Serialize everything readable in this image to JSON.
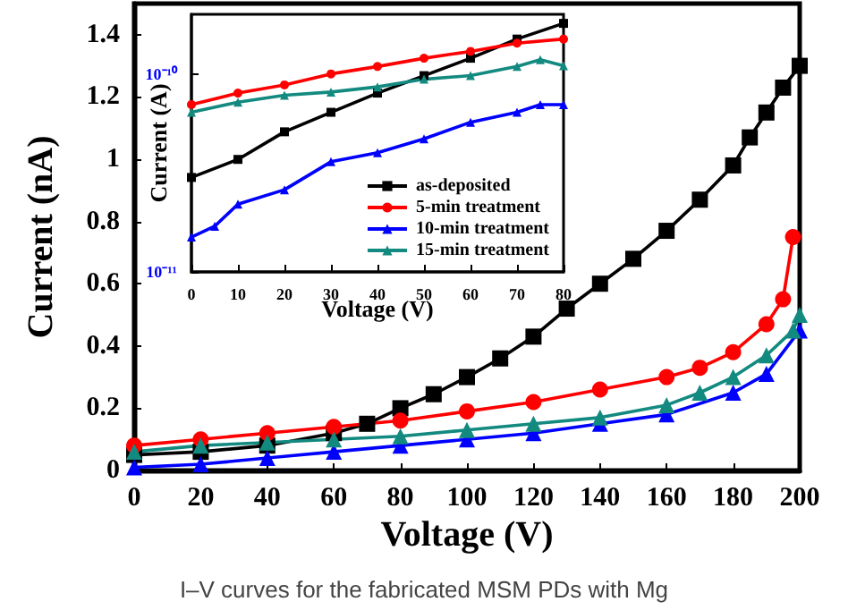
{
  "chart_data": [
    {
      "type": "line",
      "xlabel": "Voltage (V)",
      "ylabel": "Current (nA)",
      "xlim": [
        0,
        200
      ],
      "xticks": [
        0,
        20,
        40,
        60,
        80,
        100,
        120,
        140,
        160,
        180,
        200
      ],
      "ylim": [
        0,
        1.5
      ],
      "yticks": [
        0,
        0.2,
        0.4,
        0.6,
        0.8,
        1.0,
        1.2,
        1.4
      ],
      "grid": false,
      "legend": false,
      "annotations": [
        "I–V curves for the fabricated MSM PDs with Mg"
      ],
      "series": [
        {
          "color": "#000000",
          "marker": "square",
          "x": [
            0,
            20,
            40,
            60,
            70,
            80,
            90,
            100,
            110,
            120,
            130,
            140,
            150,
            160,
            170,
            180,
            185,
            190,
            195,
            200
          ],
          "values": [
            0.05,
            0.06,
            0.08,
            0.12,
            0.15,
            0.2,
            0.245,
            0.3,
            0.36,
            0.43,
            0.52,
            0.6,
            0.68,
            0.77,
            0.87,
            0.98,
            1.07,
            1.15,
            1.23,
            1.3
          ]
        },
        {
          "color": "#ff0000",
          "marker": "circle",
          "x": [
            0,
            20,
            40,
            60,
            80,
            100,
            120,
            140,
            160,
            170,
            180,
            190,
            195,
            198
          ],
          "values": [
            0.08,
            0.1,
            0.12,
            0.14,
            0.16,
            0.19,
            0.22,
            0.26,
            0.3,
            0.33,
            0.38,
            0.47,
            0.55,
            0.75
          ]
        },
        {
          "color": "#0000ff",
          "marker": "triangle",
          "x": [
            0,
            20,
            40,
            60,
            80,
            100,
            120,
            140,
            160,
            180,
            190,
            200
          ],
          "values": [
            0.01,
            0.02,
            0.04,
            0.06,
            0.08,
            0.1,
            0.12,
            0.15,
            0.18,
            0.25,
            0.31,
            0.45
          ]
        },
        {
          "color": "#138a80",
          "marker": "triangle",
          "x": [
            0,
            20,
            40,
            60,
            80,
            100,
            120,
            140,
            160,
            170,
            180,
            190,
            198,
            200
          ],
          "values": [
            0.06,
            0.08,
            0.09,
            0.1,
            0.11,
            0.13,
            0.15,
            0.17,
            0.21,
            0.25,
            0.3,
            0.37,
            0.45,
            0.5
          ]
        }
      ]
    },
    {
      "type": "line",
      "xlabel": "Voltage (V)",
      "ylabel": "Current (A)",
      "log": "y",
      "xlim": [
        0,
        80
      ],
      "xticks": [
        0,
        10,
        20,
        30,
        40,
        50,
        60,
        70,
        80
      ],
      "ylim": [
        1e-11,
        2e-10
      ],
      "yticks": [
        {
          "value": 1e-11,
          "label": "10⁻¹¹"
        },
        {
          "value": 1e-10,
          "label": "10⁻¹⁰"
        }
      ],
      "grid": false,
      "legend": "bottom right",
      "series": [
        {
          "name": "as-deposited",
          "color": "#000000",
          "marker": "square",
          "x": [
            0,
            10,
            20,
            30,
            40,
            50,
            60,
            70,
            80
          ],
          "values": [
            3e-11,
            3.7e-11,
            5.1e-11,
            6.4e-11,
            8e-11,
            9.8e-11,
            1.2e-10,
            1.5e-10,
            1.8e-10
          ]
        },
        {
          "name": "5-min treatment",
          "color": "#ff0000",
          "marker": "circle",
          "x": [
            0,
            10,
            20,
            30,
            40,
            50,
            60,
            70,
            80
          ],
          "values": [
            7e-11,
            8e-11,
            8.8e-11,
            1e-10,
            1.09e-10,
            1.2e-10,
            1.3e-10,
            1.43e-10,
            1.5e-10
          ]
        },
        {
          "name": "10-min treatment",
          "color": "#0000ff",
          "marker": "triangle",
          "x": [
            0,
            5,
            10,
            20,
            30,
            40,
            50,
            60,
            70,
            75,
            80
          ],
          "values": [
            1.5e-11,
            1.7e-11,
            2.2e-11,
            2.6e-11,
            3.6e-11,
            4e-11,
            4.7e-11,
            5.7e-11,
            6.4e-11,
            7e-11,
            7e-11
          ]
        },
        {
          "name": "15-min treatment",
          "color": "#138a80",
          "marker": "triangle",
          "x": [
            0,
            10,
            20,
            30,
            40,
            50,
            60,
            70,
            75,
            80
          ],
          "values": [
            6.4e-11,
            7.2e-11,
            7.8e-11,
            8.1e-11,
            8.6e-11,
            9.4e-11,
            9.8e-11,
            1.09e-10,
            1.18e-10,
            1.1e-10
          ]
        }
      ]
    }
  ]
}
